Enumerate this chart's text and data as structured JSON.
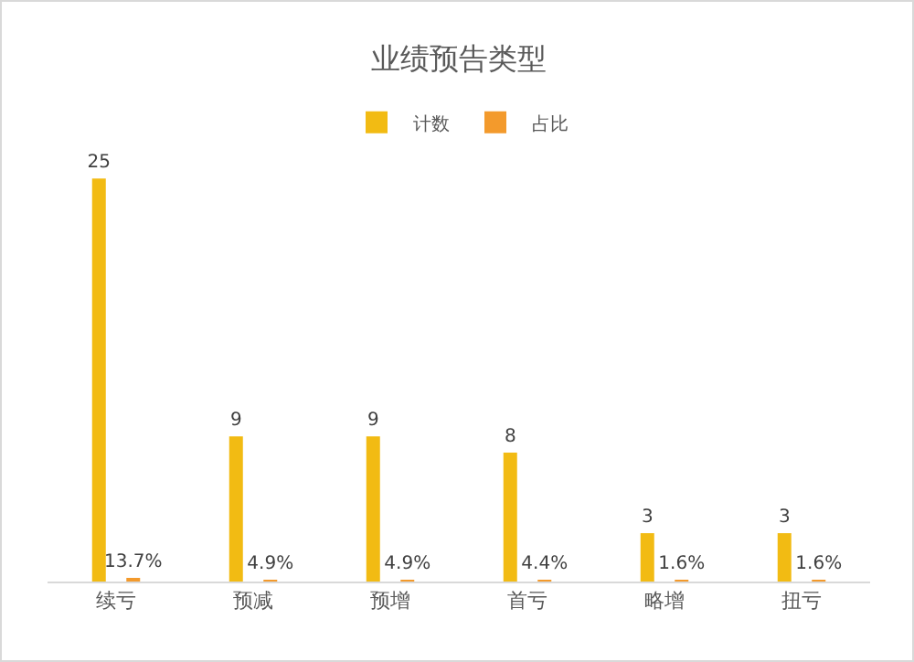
{
  "chart_data": {
    "type": "bar",
    "title": "业绩预告类型",
    "categories": [
      "续亏",
      "预减",
      "预增",
      "首亏",
      "略增",
      "扭亏"
    ],
    "series": [
      {
        "name": "计数",
        "color": "#f2bb13",
        "values": [
          25,
          9,
          9,
          8,
          3,
          3
        ],
        "value_labels": [
          "25",
          "9",
          "9",
          "8",
          "3",
          "3"
        ]
      },
      {
        "name": "占比",
        "color": "#f39a2c",
        "values": [
          0.137,
          0.049,
          0.049,
          0.044,
          0.016,
          0.016
        ],
        "value_labels": [
          "13.7%",
          "4.9%",
          "4.9%",
          "4.4%",
          "1.6%",
          "1.6%"
        ]
      }
    ],
    "legend": "top"
  }
}
